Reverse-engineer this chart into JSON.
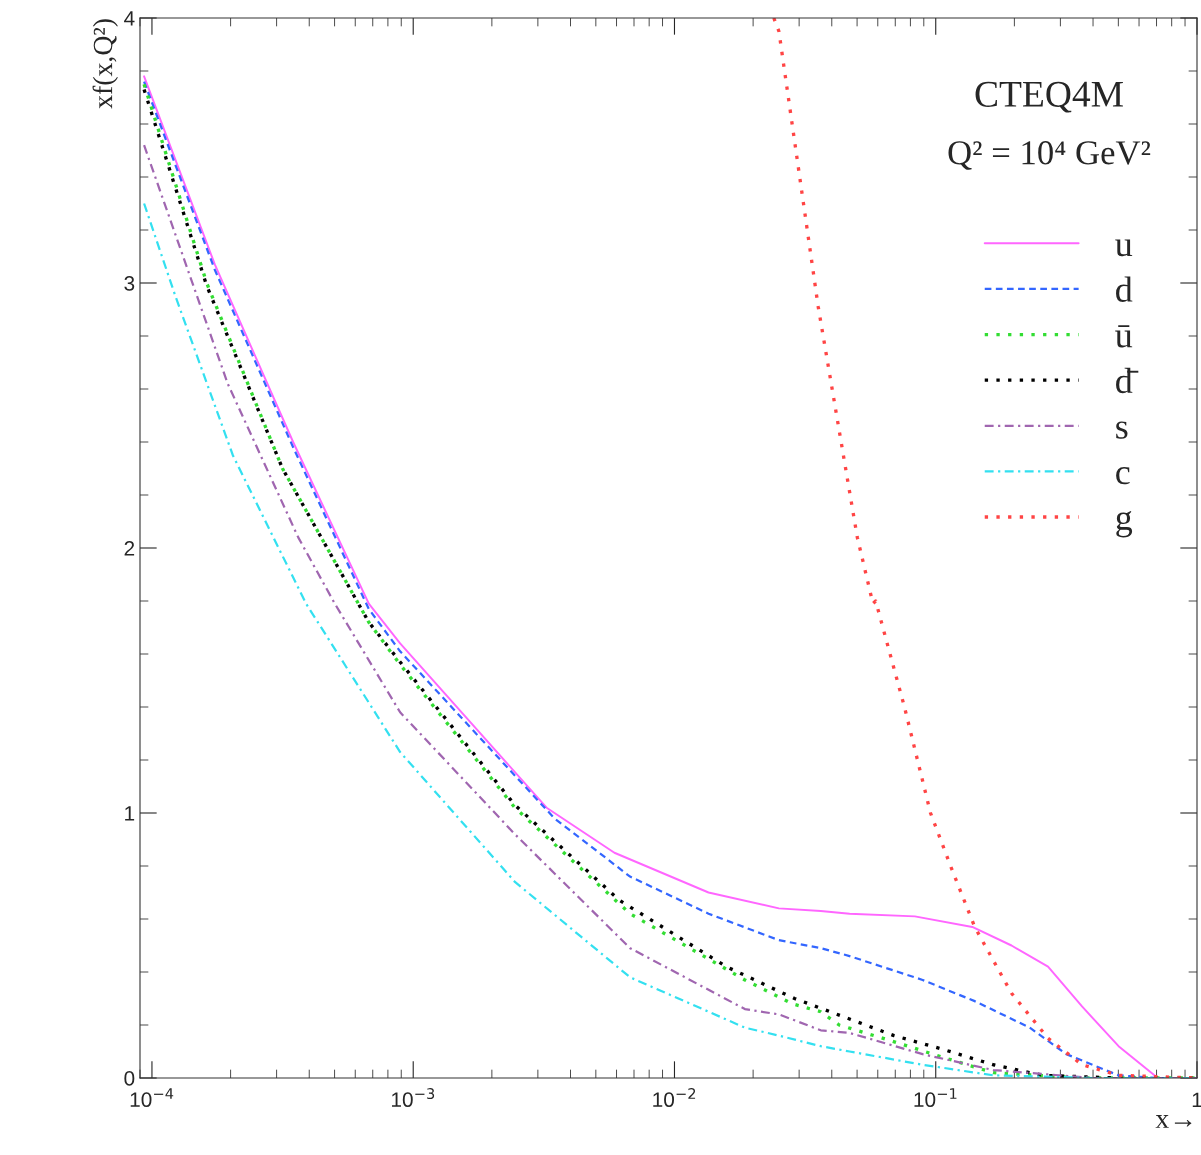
{
  "chart_data": {
    "type": "line",
    "title": "CTEQ4M",
    "subtitle": "Q² = 10⁴ GeV²",
    "xlabel": "x→",
    "ylabel": "xf(x,Q²)",
    "log": "x",
    "xlim": [
      9e-05,
      1
    ],
    "ylim": [
      0,
      4
    ],
    "xticks": [
      {
        "value": 0.0001,
        "label": "10$^{−4}$"
      },
      {
        "value": 0.001,
        "label": "10$^{−3}$"
      },
      {
        "value": 0.01,
        "label": "10$^{−2}$"
      },
      {
        "value": 0.1,
        "label": "10$^{−1}$"
      },
      1
    ],
    "yticks": [
      0,
      1,
      2,
      3,
      4
    ],
    "grid": false,
    "legend": "top right",
    "series": [
      {
        "name": "u",
        "color": "#ff66ff",
        "line_style": "solid",
        "x": [
          9.33e-05,
          0.000174,
          0.000347,
          0.000676,
          0.000891,
          0.00324,
          0.00589,
          0.0135,
          0.0251,
          0.0363,
          0.0468,
          0.0832,
          0.138,
          0.195,
          0.269,
          0.363,
          0.501,
          0.708,
          1
        ],
        "values": [
          3.78,
          3.07,
          2.4,
          1.79,
          1.64,
          1.02,
          0.85,
          0.7,
          0.64,
          0.63,
          0.62,
          0.61,
          0.57,
          0.5,
          0.42,
          0.27,
          0.12,
          0.0,
          0.0
        ]
      },
      {
        "name": "d",
        "color": "#3366ff",
        "line_style": "dashed",
        "x": [
          9.33e-05,
          0.000174,
          0.000347,
          0.000676,
          0.000891,
          0.00347,
          0.00676,
          0.0135,
          0.0251,
          0.0363,
          0.0468,
          0.0891,
          0.141,
          0.229,
          0.316,
          0.501,
          0.708,
          1
        ],
        "values": [
          3.76,
          3.05,
          2.38,
          1.77,
          1.61,
          0.98,
          0.76,
          0.62,
          0.52,
          0.49,
          0.46,
          0.37,
          0.29,
          0.19,
          0.09,
          0.01,
          0.0,
          0.0
        ]
      },
      {
        "name": "ū",
        "color": "#33dd33",
        "line_style": "dotted",
        "x": [
          9.33e-05,
          0.000162,
          0.000316,
          0.000676,
          0.000891,
          0.00245,
          0.00676,
          0.0186,
          0.0282,
          0.0363,
          0.0427,
          0.0676,
          0.105,
          0.166,
          0.363,
          1
        ],
        "values": [
          3.75,
          3.0,
          2.3,
          1.72,
          1.56,
          1.02,
          0.62,
          0.37,
          0.28,
          0.25,
          0.2,
          0.14,
          0.08,
          0.02,
          0.0,
          0.0
        ]
      },
      {
        "name": "d̄",
        "color": "#000000",
        "line_style": "dotted",
        "x": [
          9.33e-05,
          0.000162,
          0.000316,
          0.000676,
          0.000891,
          0.00245,
          0.00617,
          0.0158,
          0.0288,
          0.0447,
          0.0692,
          0.105,
          0.166,
          0.257,
          0.5,
          1
        ],
        "values": [
          3.73,
          2.99,
          2.3,
          1.72,
          1.57,
          1.03,
          0.67,
          0.42,
          0.3,
          0.23,
          0.16,
          0.11,
          0.05,
          0.01,
          0.0,
          0.0
        ]
      },
      {
        "name": "s",
        "color": "#a066b0",
        "line_style": "dashdot",
        "x": [
          9.33e-05,
          0.000195,
          0.000363,
          0.000501,
          0.000891,
          0.00245,
          0.00676,
          0.0186,
          0.0251,
          0.0363,
          0.0468,
          0.0891,
          0.166,
          0.4,
          1
        ],
        "values": [
          3.52,
          2.62,
          2.04,
          1.79,
          1.38,
          0.92,
          0.49,
          0.26,
          0.24,
          0.18,
          0.17,
          0.09,
          0.03,
          0.0,
          0.0
        ]
      },
      {
        "name": "c",
        "color": "#33e0f0",
        "line_style": "dashdot",
        "x": [
          9.33e-05,
          0.000123,
          0.000204,
          0.000389,
          0.000891,
          0.00245,
          0.00676,
          0.0186,
          0.0251,
          0.0363,
          0.0468,
          0.0891,
          0.166,
          0.4,
          1
        ],
        "values": [
          3.3,
          2.95,
          2.35,
          1.79,
          1.23,
          0.74,
          0.38,
          0.19,
          0.16,
          0.12,
          0.1,
          0.05,
          0.01,
          0.0,
          0.0
        ]
      },
      {
        "name": "g",
        "color": "#ff4444",
        "line_style": "dotted",
        "x": [
          0.024,
          0.0251,
          0.0355,
          0.0501,
          0.0575,
          0.0589,
          0.0759,
          0.0955,
          0.115,
          0.141,
          0.195,
          0.269,
          0.363,
          0.501,
          1
        ],
        "values": [
          4.0,
          3.95,
          2.91,
          2.04,
          1.79,
          1.8,
          1.4,
          1.0,
          0.79,
          0.57,
          0.32,
          0.15,
          0.05,
          0.01,
          0.0
        ]
      }
    ]
  }
}
